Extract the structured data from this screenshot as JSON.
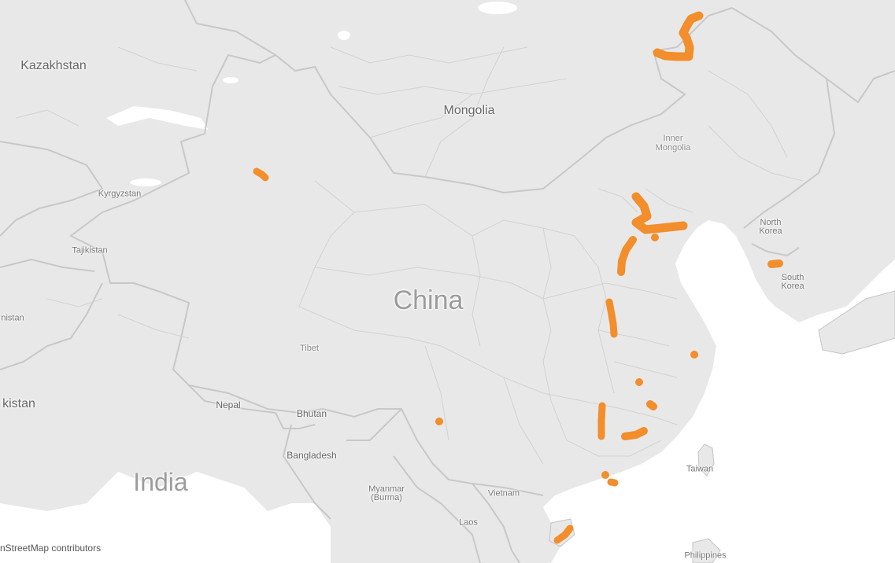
{
  "map": {
    "attribution": "nStreetMap contributors",
    "colors": {
      "water": "#ffffff",
      "land": "#e8e8e8",
      "border": "#c4c4c4",
      "country_border": "#cfcfcf",
      "marker": "#f28e2b"
    },
    "labels": {
      "kazakhstan": "Kazakhstan",
      "mongolia": "Mongolia",
      "inner_mongolia": "Inner Mongolia",
      "kyrgyzstan": "Kyrgyzstan",
      "tajikistan": "Tajikistan",
      "nistan": "nistan",
      "kistan": "kistan",
      "china": "China",
      "tibet": "Tibet",
      "nepal": "Nepal",
      "bhutan": "Bhutan",
      "bangladesh": "Bangladesh",
      "india": "India",
      "myanmar": "Myanmar (Burma)",
      "vietnam": "Vietnam",
      "laos": "Laos",
      "north_korea": "North Korea",
      "south_korea": "South Korea",
      "taiwan": "Taiwan",
      "philippines": "Philippines"
    }
  }
}
